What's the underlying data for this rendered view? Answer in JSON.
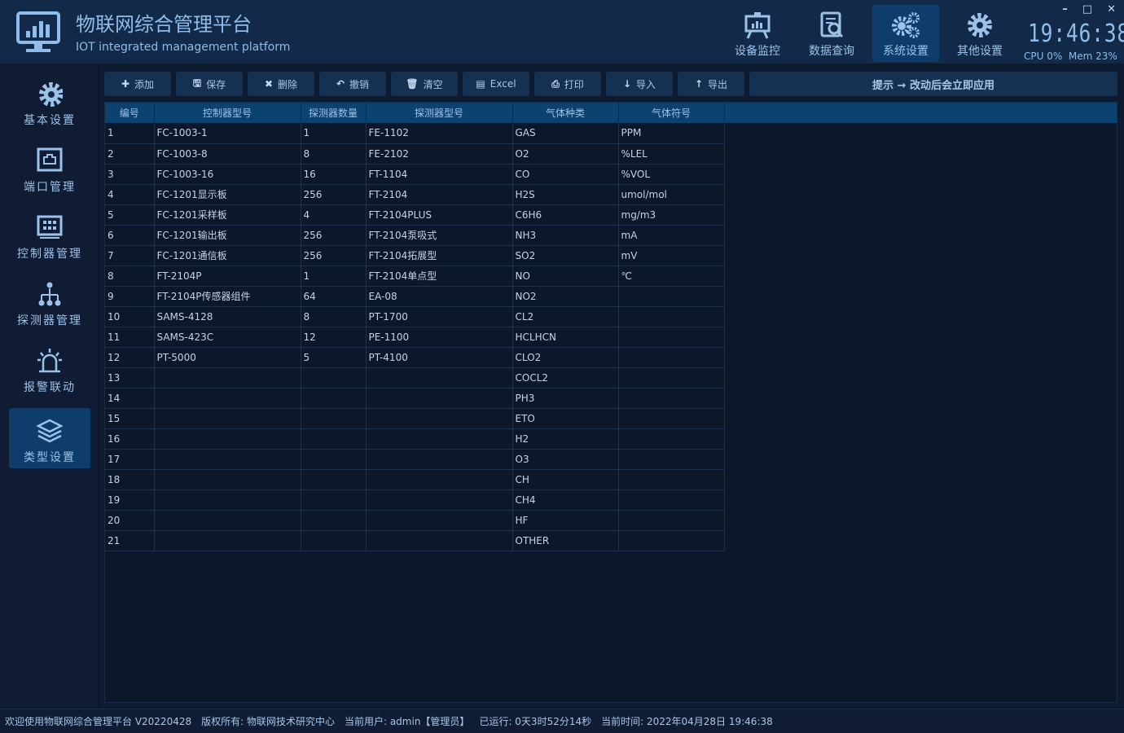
{
  "app": {
    "title": "物联网综合管理平台",
    "subtitle": "IOT integrated management platform"
  },
  "nav": [
    {
      "label": "设备监控",
      "icon": "presentation-chart-icon"
    },
    {
      "label": "数据查询",
      "icon": "document-search-icon"
    },
    {
      "label": "系统设置",
      "icon": "gears-icon",
      "active": true
    },
    {
      "label": "其他设置",
      "icon": "gear-icon"
    }
  ],
  "window": {
    "minimize": "–",
    "maximize": "□",
    "close": "✕"
  },
  "clock": "19:46:38",
  "sys": {
    "cpu": "CPU 0%",
    "mem": "Mem 23%"
  },
  "sidebar": [
    {
      "label": "基本设置",
      "icon": "gear-icon"
    },
    {
      "label": "端口管理",
      "icon": "network-port-icon"
    },
    {
      "label": "控制器管理",
      "icon": "controller-icon"
    },
    {
      "label": "探测器管理",
      "icon": "hierarchy-icon"
    },
    {
      "label": "报警联动",
      "icon": "alarm-light-icon"
    },
    {
      "label": "类型设置",
      "icon": "layers-icon",
      "active": true
    }
  ],
  "toolbar": [
    {
      "label": "添加",
      "icon": "plus-icon"
    },
    {
      "label": "保存",
      "icon": "save-icon"
    },
    {
      "label": "删除",
      "icon": "x-icon"
    },
    {
      "label": "撤销",
      "icon": "undo-icon"
    },
    {
      "label": "清空",
      "icon": "trash-icon"
    },
    {
      "label": "Excel",
      "icon": "excel-icon"
    },
    {
      "label": "打印",
      "icon": "print-icon"
    },
    {
      "label": "导入",
      "icon": "arrow-down-icon"
    },
    {
      "label": "导出",
      "icon": "arrow-up-icon"
    }
  ],
  "hint": "提示 → 改动后会立即应用",
  "table": {
    "columns": [
      "编号",
      "控制器型号",
      "探测器数量",
      "探测器型号",
      "气体种类",
      "气体符号"
    ],
    "rows": [
      [
        "1",
        "FC-1003-1",
        "1",
        "FE-1102",
        "GAS",
        "PPM"
      ],
      [
        "2",
        "FC-1003-8",
        "8",
        "FE-2102",
        "O2",
        "%LEL"
      ],
      [
        "3",
        "FC-1003-16",
        "16",
        "FT-1104",
        "CO",
        "%VOL"
      ],
      [
        "4",
        "FC-1201显示板",
        "256",
        "FT-2104",
        "H2S",
        "umol/mol"
      ],
      [
        "5",
        "FC-1201采样板",
        "4",
        "FT-2104PLUS",
        "C6H6",
        "mg/m3"
      ],
      [
        "6",
        "FC-1201输出板",
        "256",
        "FT-2104泵吸式",
        "NH3",
        "mA"
      ],
      [
        "7",
        "FC-1201通信板",
        "256",
        "FT-2104拓展型",
        "SO2",
        "mV"
      ],
      [
        "8",
        "FT-2104P",
        "1",
        "FT-2104单点型",
        "NO",
        "℃"
      ],
      [
        "9",
        "FT-2104P传感器组件",
        "64",
        "EA-08",
        "NO2",
        ""
      ],
      [
        "10",
        "SAMS-4128",
        "8",
        "PT-1700",
        "CL2",
        ""
      ],
      [
        "11",
        "SAMS-423C",
        "12",
        "PE-1100",
        "HCLHCN",
        ""
      ],
      [
        "12",
        "PT-5000",
        "5",
        "PT-4100",
        "CLO2",
        ""
      ],
      [
        "13",
        "",
        "",
        "",
        "COCL2",
        ""
      ],
      [
        "14",
        "",
        "",
        "",
        "PH3",
        ""
      ],
      [
        "15",
        "",
        "",
        "",
        "ETO",
        ""
      ],
      [
        "16",
        "",
        "",
        "",
        "H2",
        ""
      ],
      [
        "17",
        "",
        "",
        "",
        "O3",
        ""
      ],
      [
        "18",
        "",
        "",
        "",
        "CH",
        ""
      ],
      [
        "19",
        "",
        "",
        "",
        "CH4",
        ""
      ],
      [
        "20",
        "",
        "",
        "",
        "HF",
        ""
      ],
      [
        "21",
        "",
        "",
        "",
        "OTHER",
        ""
      ]
    ]
  },
  "status": [
    "欢迎使用物联网综合管理平台 V20220428",
    "版权所有: 物联网技术研究中心",
    "当前用户: admin【管理员】",
    "已运行: 0天3时52分14秒",
    "当前时间: 2022年04月28日 19:46:38"
  ]
}
